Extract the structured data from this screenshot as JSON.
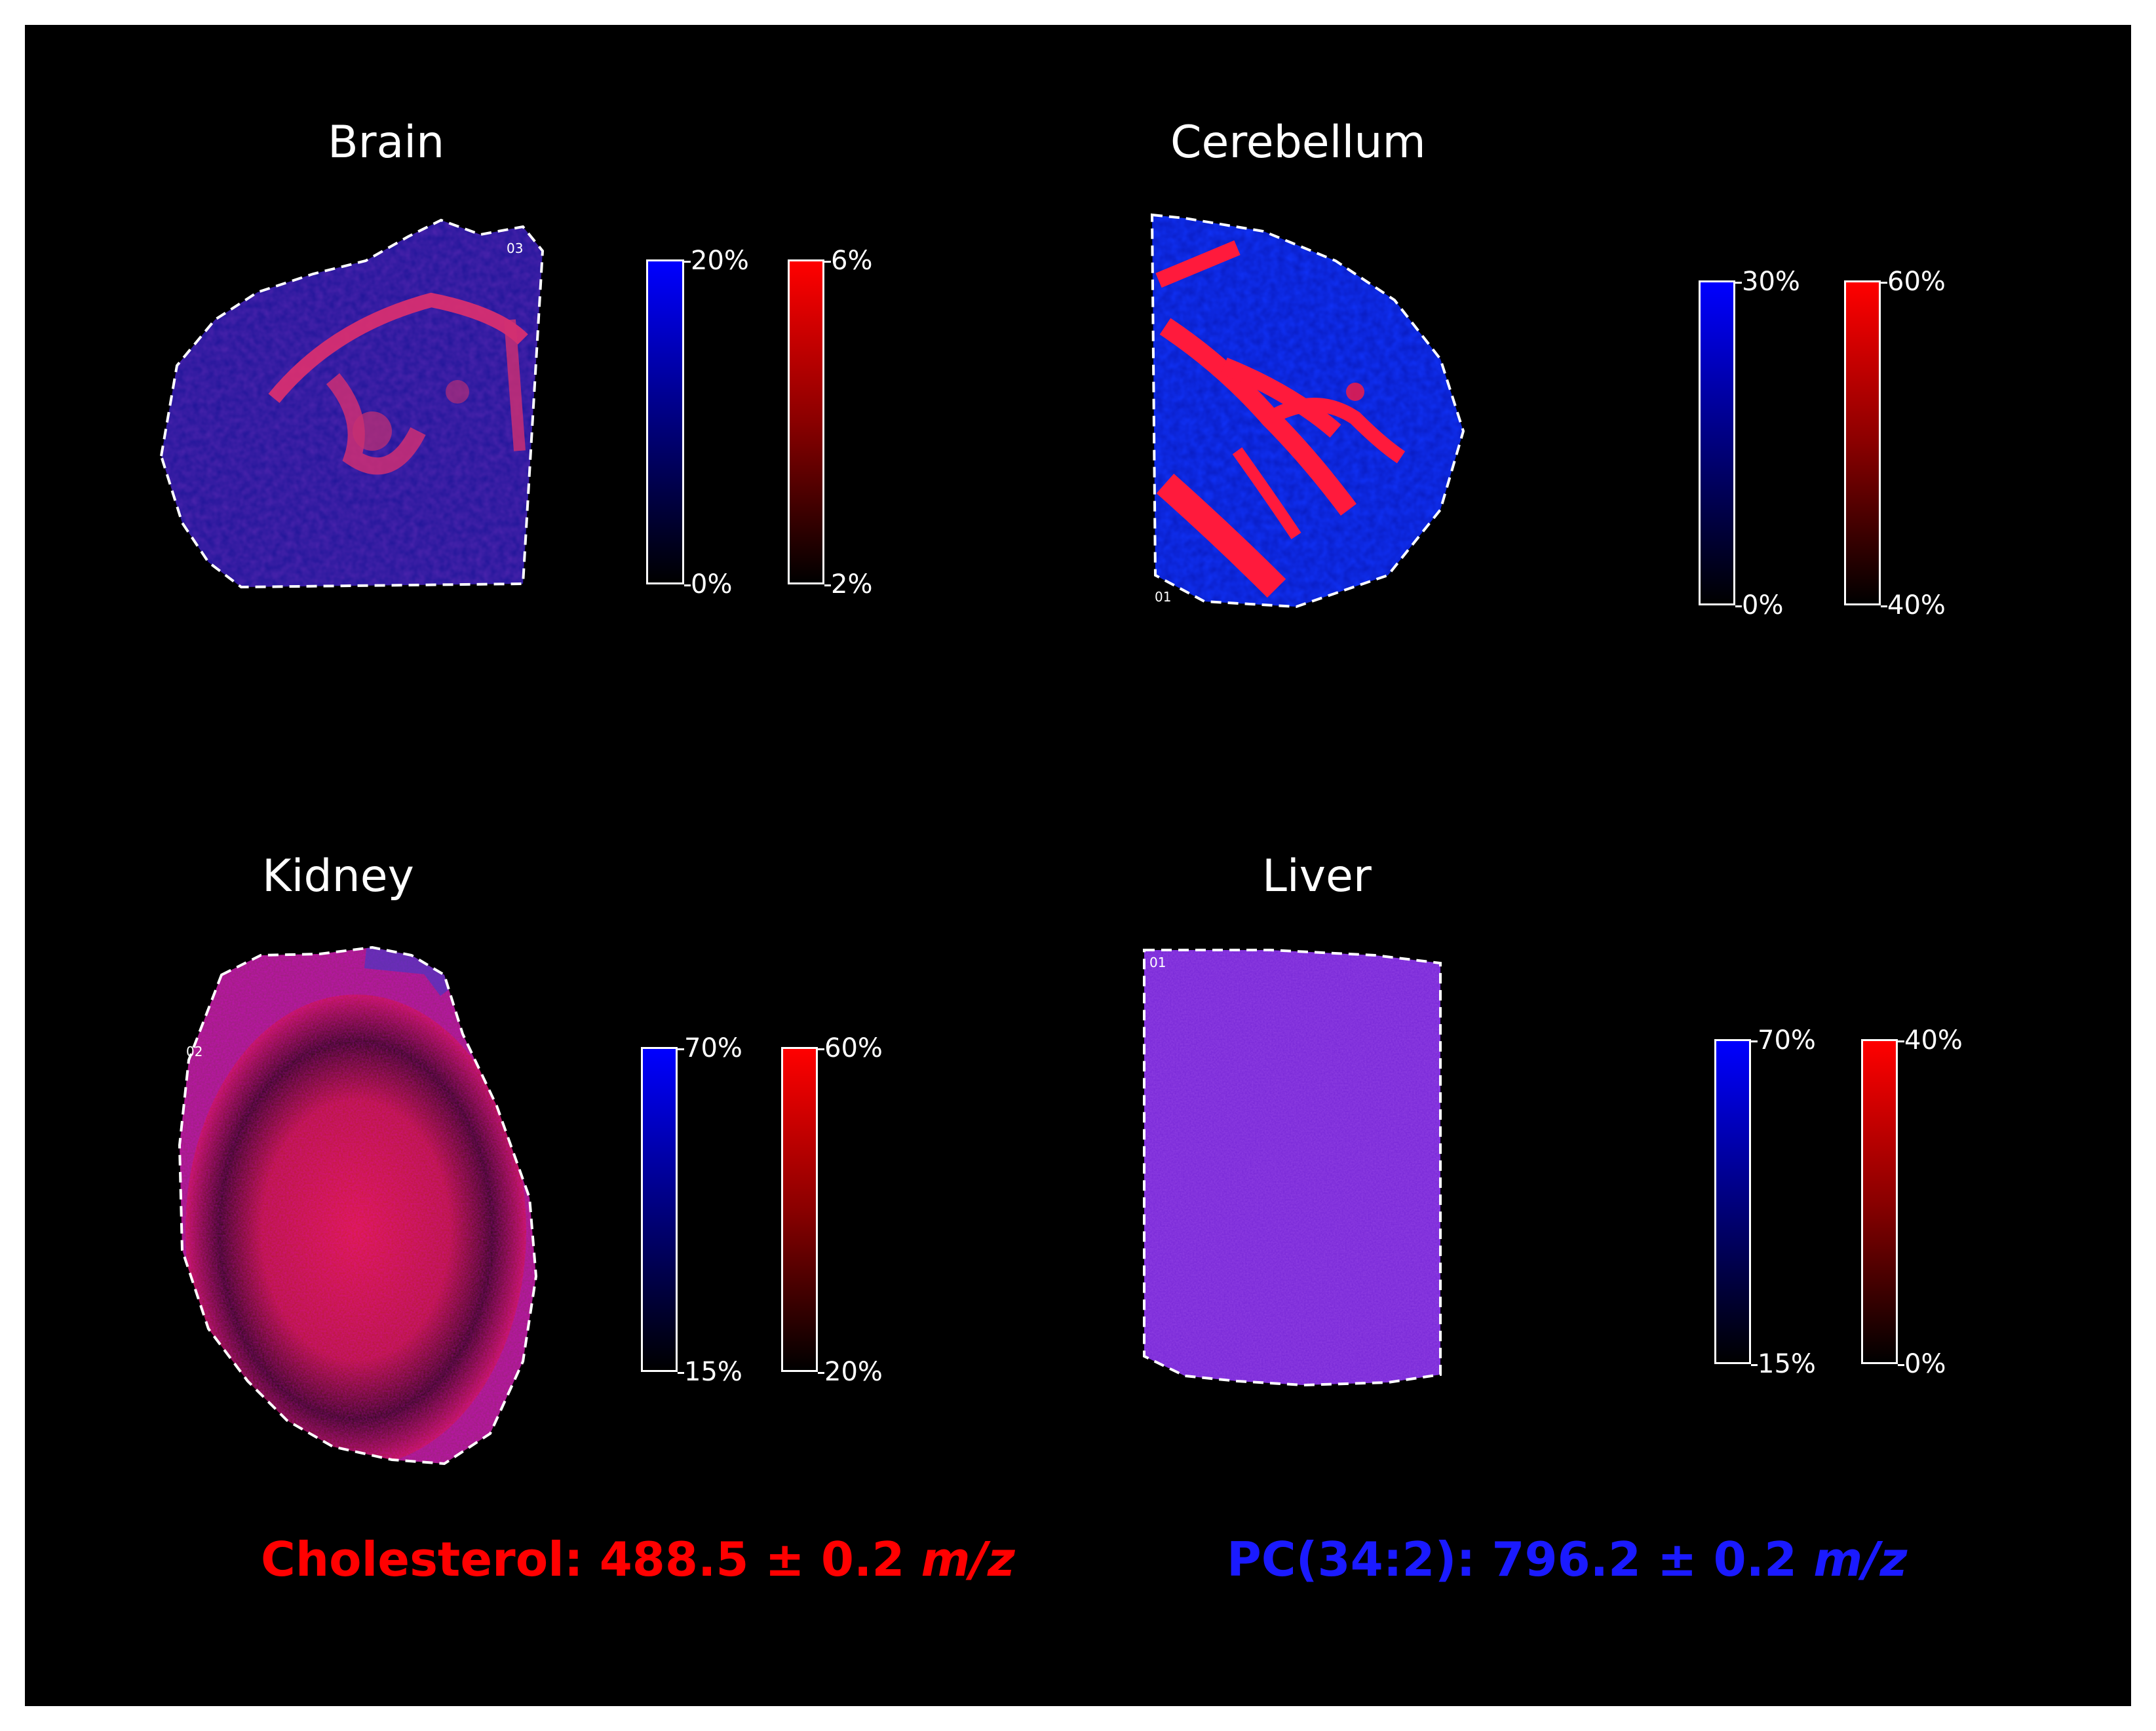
{
  "panels": [
    {
      "id": "brain",
      "title": "Brain",
      "roi": "03",
      "blue_scale": {
        "max": "20%",
        "min": "0%"
      },
      "red_scale": {
        "max": "6%",
        "min": "2%"
      }
    },
    {
      "id": "cerebellum",
      "title": "Cerebellum",
      "roi": "01",
      "blue_scale": {
        "max": "30%",
        "min": "0%"
      },
      "red_scale": {
        "max": "60%",
        "min": "40%"
      }
    },
    {
      "id": "kidney",
      "title": "Kidney",
      "roi": "02",
      "blue_scale": {
        "max": "70%",
        "min": "15%"
      },
      "red_scale": {
        "max": "60%",
        "min": "20%"
      }
    },
    {
      "id": "liver",
      "title": "Liver",
      "roi": "01",
      "blue_scale": {
        "max": "70%",
        "min": "15%"
      },
      "red_scale": {
        "max": "40%",
        "min": "0%"
      }
    }
  ],
  "captions": {
    "cholesterol": {
      "text": "Cholesterol: 488.5 ± 0.2 ",
      "unit": "m/z",
      "color": "#ff0000"
    },
    "pc": {
      "text": "PC(34:2): 796.2 ± 0.2 ",
      "unit": "m/z",
      "color": "#1a1aff"
    }
  },
  "colors": {
    "background": "#000000",
    "blue_channel": "#0000ff",
    "red_channel": "#ff0000",
    "outline": "#ffffff"
  }
}
